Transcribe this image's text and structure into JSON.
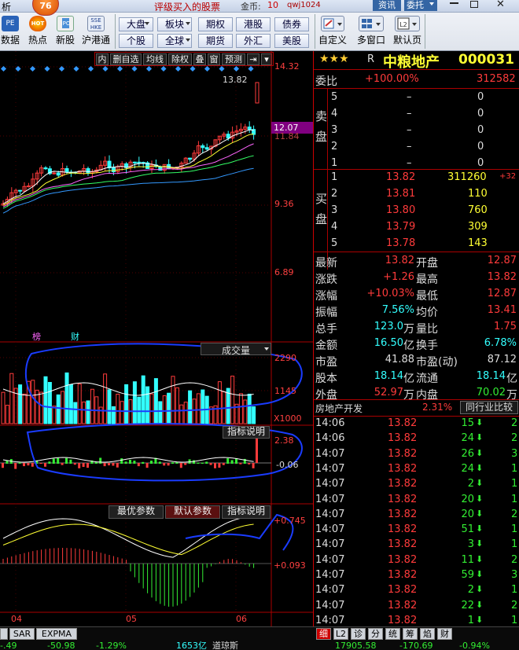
{
  "colors": {
    "up": "#ff3b3b",
    "down": "#33ee33",
    "highlight": "#33ffff",
    "accent": "#ffff33",
    "annotation": "#1a3cff"
  },
  "toolbar": {
    "top_left": "析",
    "badge": "76",
    "pe_icon_label": "PE",
    "hot_icon_label": "HOT",
    "hk_icon_label": "SSE HKE",
    "headline": "评级买入的股票",
    "gold_label": "金币:",
    "gold_value": "10",
    "user": "qwj1024",
    "info_btn": "资讯",
    "trade_btn": "委托",
    "l2_icon_label": "L2",
    "items": [
      {
        "label": "数据",
        "icon": "data-icon"
      },
      {
        "label": "热点",
        "icon": "hot-icon"
      },
      {
        "label": "新股",
        "icon": "ipo-icon"
      },
      {
        "label": "沪港通",
        "icon": "hk-connect-icon"
      }
    ],
    "grid": [
      [
        "大盘",
        "板块",
        "期权",
        "港股",
        "债券"
      ],
      [
        "个股",
        "全球",
        "期货",
        "外汇",
        "美股"
      ]
    ],
    "right_items": [
      {
        "label": "自定义",
        "icon": "custom-icon"
      },
      {
        "label": "多窗口",
        "icon": "multi-window-icon"
      },
      {
        "label": "默认页",
        "icon": "default-page-icon"
      }
    ]
  },
  "chart_header": {
    "tabs": [
      "内",
      "删自选",
      "均线",
      "除权",
      "叠",
      "窗",
      "预测"
    ]
  },
  "stock": {
    "stars": "★★★",
    "flag": "R",
    "name": "中粮地产",
    "code": "000031"
  },
  "order_book": {
    "wei_bi_label": "委比",
    "wei_bi": "+100.00%",
    "wei_cha": "312582",
    "sell_label": "卖盘",
    "buy_label": "买盘",
    "sell": [
      {
        "lvl": "5",
        "price": "–",
        "vol": "0"
      },
      {
        "lvl": "4",
        "price": "–",
        "vol": "0"
      },
      {
        "lvl": "3",
        "price": "–",
        "vol": "0"
      },
      {
        "lvl": "2",
        "price": "–",
        "vol": "0"
      },
      {
        "lvl": "1",
        "price": "–",
        "vol": "0"
      }
    ],
    "buy": [
      {
        "lvl": "1",
        "price": "13.82",
        "vol": "311260",
        "chg": "+32"
      },
      {
        "lvl": "2",
        "price": "13.81",
        "vol": "110",
        "chg": ""
      },
      {
        "lvl": "3",
        "price": "13.80",
        "vol": "760",
        "chg": ""
      },
      {
        "lvl": "4",
        "price": "13.79",
        "vol": "309",
        "chg": ""
      },
      {
        "lvl": "5",
        "price": "13.78",
        "vol": "143",
        "chg": ""
      }
    ]
  },
  "quote": [
    {
      "l1": "最新",
      "v1": "13.82",
      "c1": "red",
      "l2": "开盘",
      "v2": "12.87",
      "c2": "red"
    },
    {
      "l1": "涨跌",
      "v1": "+1.26",
      "c1": "red",
      "l2": "最高",
      "v2": "13.82",
      "c2": "red"
    },
    {
      "l1": "涨幅",
      "v1": "+10.03%",
      "c1": "red",
      "l2": "最低",
      "v2": "12.87",
      "c2": "red"
    },
    {
      "l1": "振幅",
      "v1": "7.56%",
      "c1": "cyan",
      "l2": "均价",
      "v2": "13.41",
      "c2": "red"
    },
    {
      "l1": "总手",
      "v1": "123.0",
      "u1": "万",
      "c1": "cyan",
      "l2": "量比",
      "v2": "1.75",
      "c2": "red"
    },
    {
      "l1": "金额",
      "v1": "16.50",
      "u1": "亿",
      "c1": "cyan",
      "l2": "换手",
      "v2": "6.78%",
      "c2": "cyan"
    },
    {
      "l1": "市盈",
      "v1": "41.88",
      "c1": "wht",
      "l2": "市盈(动)",
      "v2": "87.12",
      "c2": "wht"
    },
    {
      "l1": "股本",
      "v1": "18.14",
      "u1": "亿",
      "c1": "cyan",
      "l2": "流通",
      "v2": "18.14",
      "u2": "亿",
      "c2": "cyan"
    },
    {
      "l1": "外盘",
      "v1": "52.97",
      "u1": "万",
      "c1": "red",
      "l2": "内盘",
      "v2": "70.02",
      "u2": "万",
      "c2": "grn"
    }
  ],
  "sector": {
    "name": "房地产开发",
    "pct": "2.31%",
    "compare_btn": "同行业比较"
  },
  "ticks": [
    {
      "t": "14:06",
      "p": "13.82",
      "v": "15",
      "d": "down",
      "n": "2"
    },
    {
      "t": "14:06",
      "p": "13.82",
      "v": "24",
      "d": "down",
      "n": "2"
    },
    {
      "t": "14:07",
      "p": "13.82",
      "v": "26",
      "d": "down",
      "n": "3"
    },
    {
      "t": "14:07",
      "p": "13.82",
      "v": "24",
      "d": "down",
      "n": "1"
    },
    {
      "t": "14:07",
      "p": "13.82",
      "v": "2",
      "d": "down",
      "n": "1"
    },
    {
      "t": "14:07",
      "p": "13.82",
      "v": "20",
      "d": "down",
      "n": "1"
    },
    {
      "t": "14:07",
      "p": "13.82",
      "v": "20",
      "d": "down",
      "n": "2"
    },
    {
      "t": "14:07",
      "p": "13.82",
      "v": "51",
      "d": "down",
      "n": "1"
    },
    {
      "t": "14:07",
      "p": "13.82",
      "v": "3",
      "d": "down",
      "n": "1"
    },
    {
      "t": "14:07",
      "p": "13.82",
      "v": "11",
      "d": "down",
      "n": "2"
    },
    {
      "t": "14:07",
      "p": "13.82",
      "v": "59",
      "d": "down",
      "n": "3"
    },
    {
      "t": "14:07",
      "p": "13.82",
      "v": "2",
      "d": "down",
      "n": "1"
    },
    {
      "t": "14:07",
      "p": "13.82",
      "v": "22",
      "d": "down",
      "n": "2"
    },
    {
      "t": "14:07",
      "p": "13.82",
      "v": "1",
      "d": "down",
      "n": "1"
    }
  ],
  "right_tabs": [
    "细",
    "L2",
    "诊",
    "分",
    "统",
    "筹",
    "焰",
    "财"
  ],
  "left_tabs": [
    "SAR",
    "EXPMA"
  ],
  "price_axis": [
    "14.32",
    "12.07",
    "11.84",
    "9.36",
    "6.89"
  ],
  "max_price_label": "13.82",
  "markers": [
    "榜",
    "财"
  ],
  "volume_panel": {
    "selector": "成交量",
    "axis": [
      "2290",
      "1145"
    ],
    "unit": "X1000"
  },
  "indicator_panel": {
    "btn": "指标说明",
    "axis": [
      "2.38",
      "-0.06"
    ]
  },
  "macd_panel": {
    "btns": [
      "最优参数",
      "默认参数",
      "指标说明"
    ],
    "axis": [
      "+0.745",
      "+0.093"
    ]
  },
  "x_axis": [
    "04",
    "05",
    "06"
  ],
  "status": {
    "v1": "-.49",
    "v2": "-50.98",
    "v3": "-1.29%",
    "v4": "1653亿",
    "idx": "道琼斯",
    "v5": "17905.58",
    "v6": "-170.69",
    "v7": "-0.94%"
  }
}
